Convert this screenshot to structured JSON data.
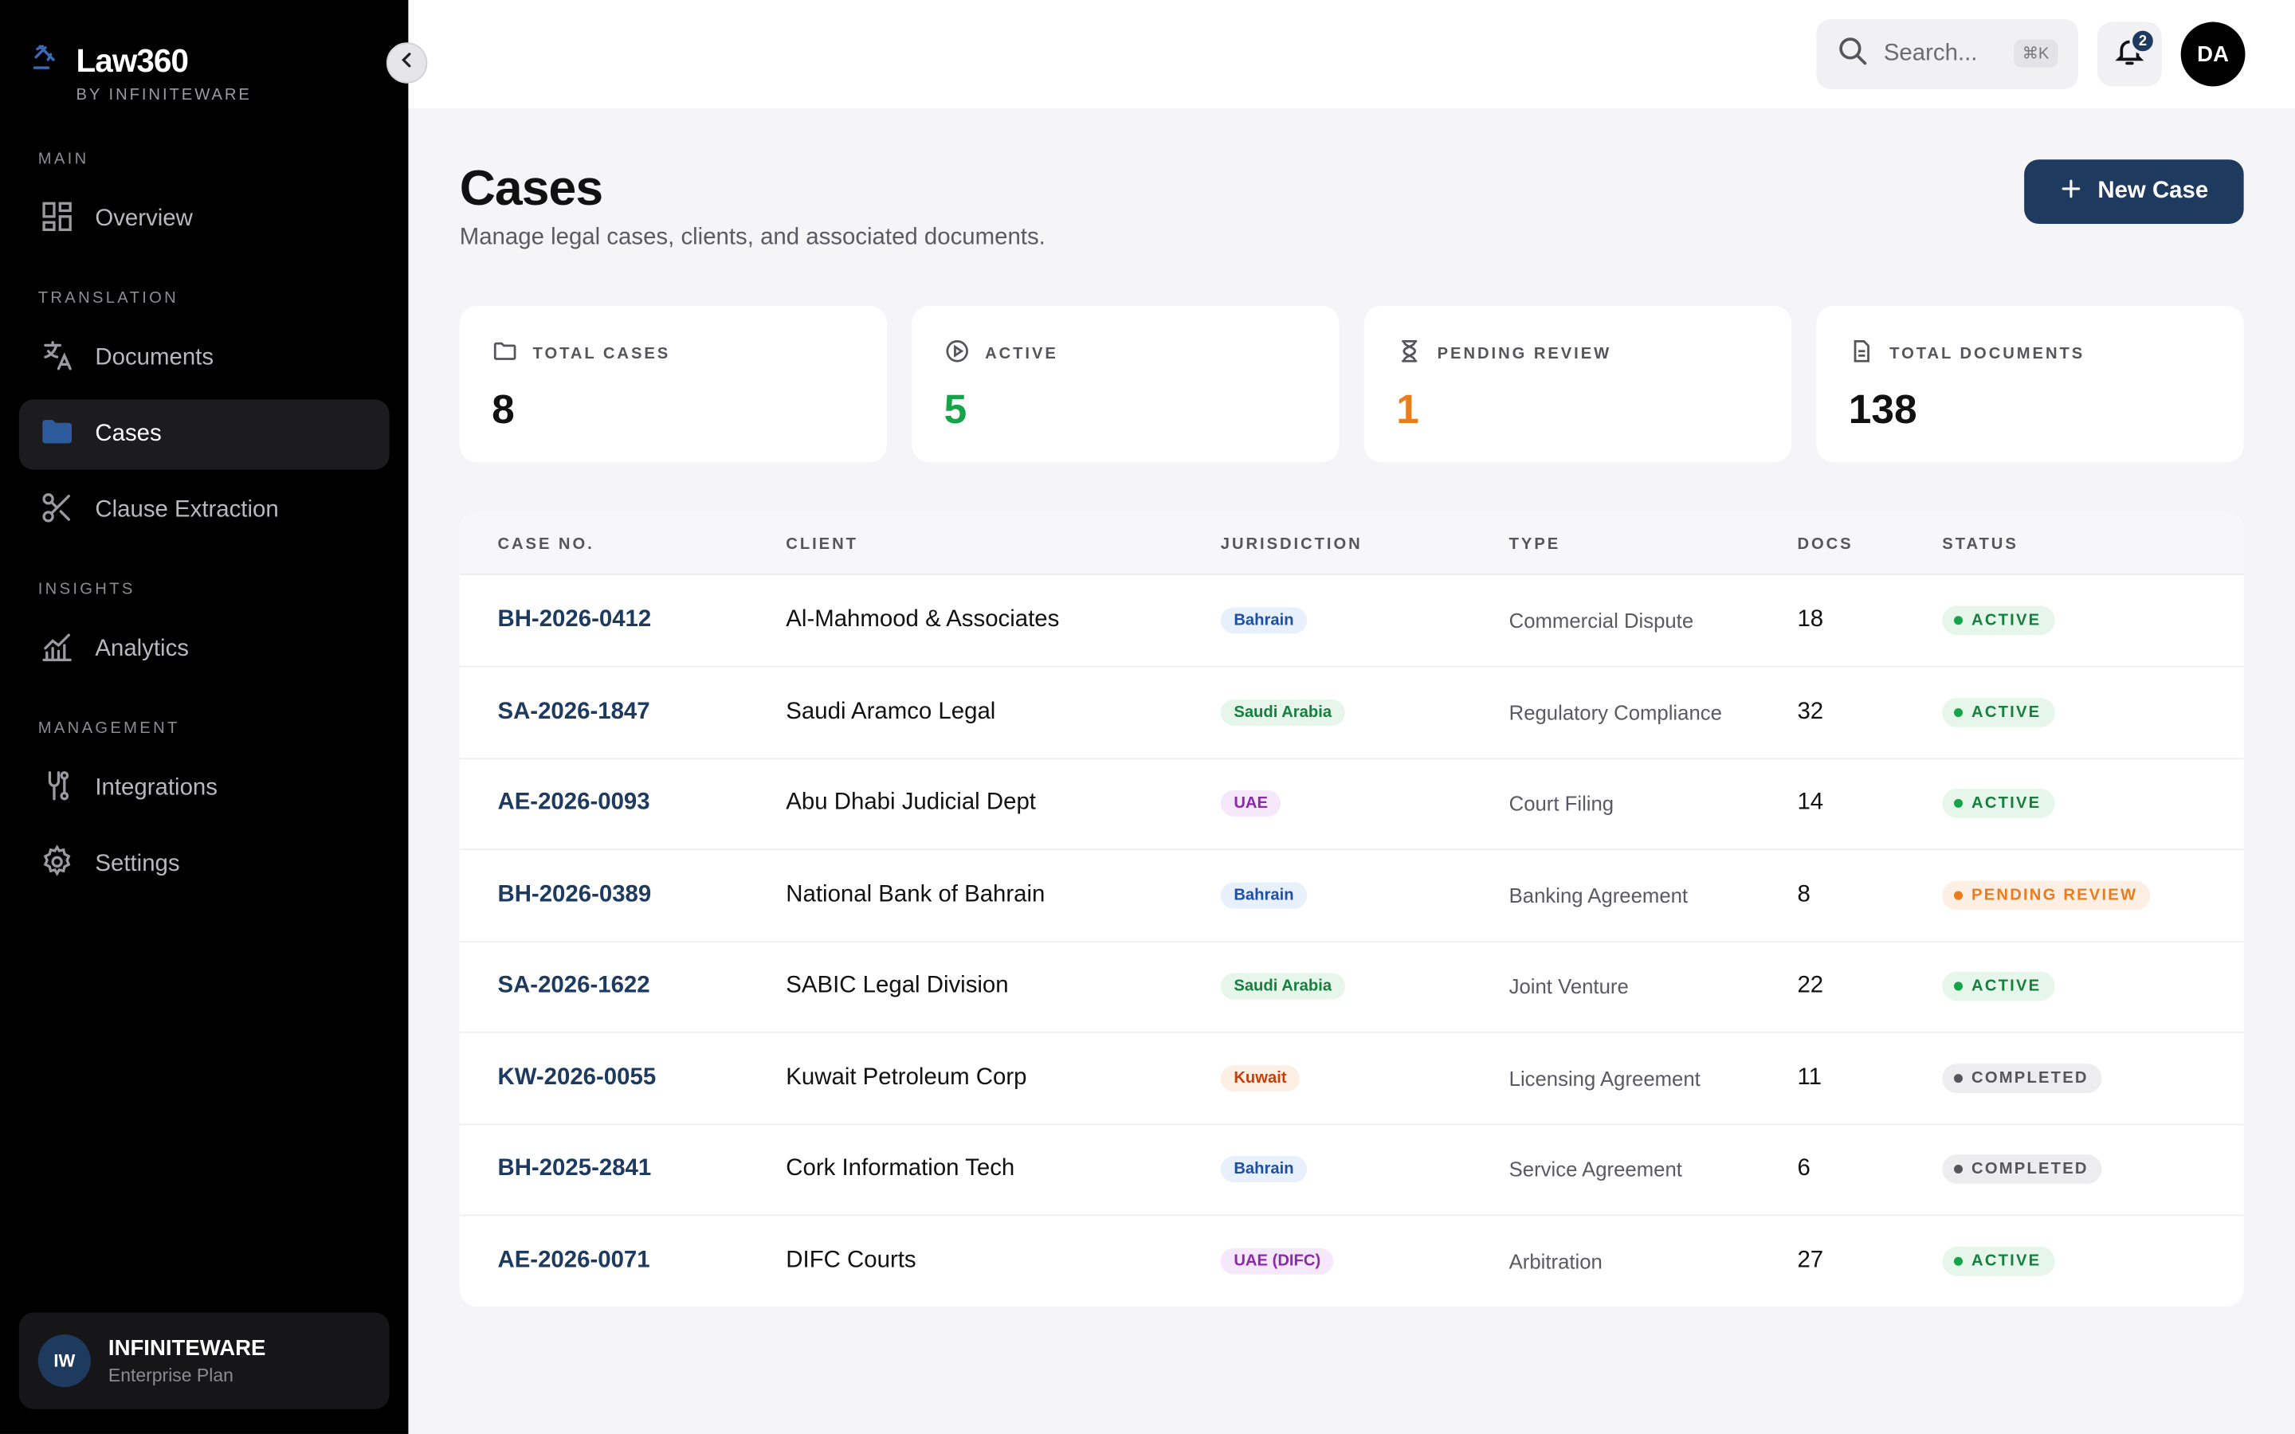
{
  "app": {
    "title": "Law360",
    "subtitle": "BY INFINITEWARE",
    "logo_icon": "gavel-icon"
  },
  "sidebar": {
    "sections": {
      "main": "MAIN",
      "translation": "TRANSLATION",
      "insights": "INSIGHTS",
      "management": "MANAGEMENT"
    },
    "items": {
      "overview": "Overview",
      "documents": "Documents",
      "cases": "Cases",
      "clause_extraction": "Clause Extraction",
      "analytics": "Analytics",
      "integrations": "Integrations",
      "settings": "Settings"
    },
    "active_item": "Cases",
    "org": {
      "initials": "IW",
      "name": "INFINITEWARE",
      "plan": "Enterprise Plan"
    }
  },
  "topbar": {
    "search_placeholder": "Search...",
    "search_shortcut": "⌘K",
    "notifications_count": "2",
    "user_initials": "DA"
  },
  "page": {
    "title": "Cases",
    "subtitle": "Manage legal cases, clients, and associated documents.",
    "new_case_label": "New Case"
  },
  "stats": [
    {
      "label": "TOTAL CASES",
      "value": "8",
      "icon": "folder-icon",
      "color": "#111111"
    },
    {
      "label": "ACTIVE",
      "value": "5",
      "icon": "play-circle-icon",
      "color": "#16a34a"
    },
    {
      "label": "PENDING REVIEW",
      "value": "1",
      "icon": "hourglass-icon",
      "color": "#ea7c1c"
    },
    {
      "label": "TOTAL DOCUMENTS",
      "value": "138",
      "icon": "document-icon",
      "color": "#111111"
    }
  ],
  "table": {
    "headers": [
      "CASE NO.",
      "CLIENT",
      "JURISDICTION",
      "TYPE",
      "DOCS",
      "STATUS"
    ],
    "rows": [
      {
        "case_no": "BH-2026-0412",
        "client": "Al-Mahmood & Associates",
        "jurisdiction": "Bahrain",
        "type": "Commercial Dispute",
        "docs": "18",
        "status": "ACTIVE"
      },
      {
        "case_no": "SA-2026-1847",
        "client": "Saudi Aramco Legal",
        "jurisdiction": "Saudi Arabia",
        "type": "Regulatory Compliance",
        "docs": "32",
        "status": "ACTIVE"
      },
      {
        "case_no": "AE-2026-0093",
        "client": "Abu Dhabi Judicial Dept",
        "jurisdiction": "UAE",
        "type": "Court Filing",
        "docs": "14",
        "status": "ACTIVE"
      },
      {
        "case_no": "BH-2026-0389",
        "client": "National Bank of Bahrain",
        "jurisdiction": "Bahrain",
        "type": "Banking Agreement",
        "docs": "8",
        "status": "PENDING REVIEW"
      },
      {
        "case_no": "SA-2026-1622",
        "client": "SABIC Legal Division",
        "jurisdiction": "Saudi Arabia",
        "type": "Joint Venture",
        "docs": "22",
        "status": "ACTIVE"
      },
      {
        "case_no": "KW-2026-0055",
        "client": "Kuwait Petroleum Corp",
        "jurisdiction": "Kuwait",
        "type": "Licensing Agreement",
        "docs": "11",
        "status": "COMPLETED"
      },
      {
        "case_no": "BH-2025-2841",
        "client": "Cork Information Tech",
        "jurisdiction": "Bahrain",
        "type": "Service Agreement",
        "docs": "6",
        "status": "COMPLETED"
      },
      {
        "case_no": "AE-2026-0071",
        "client": "DIFC Courts",
        "jurisdiction": "UAE (DIFC)",
        "type": "Arbitration",
        "docs": "27",
        "status": "ACTIVE"
      }
    ]
  },
  "colors": {
    "brand": "#1e3a5f",
    "active": "#16a34a",
    "pending": "#ea7c1c",
    "completed": "#55555c"
  }
}
